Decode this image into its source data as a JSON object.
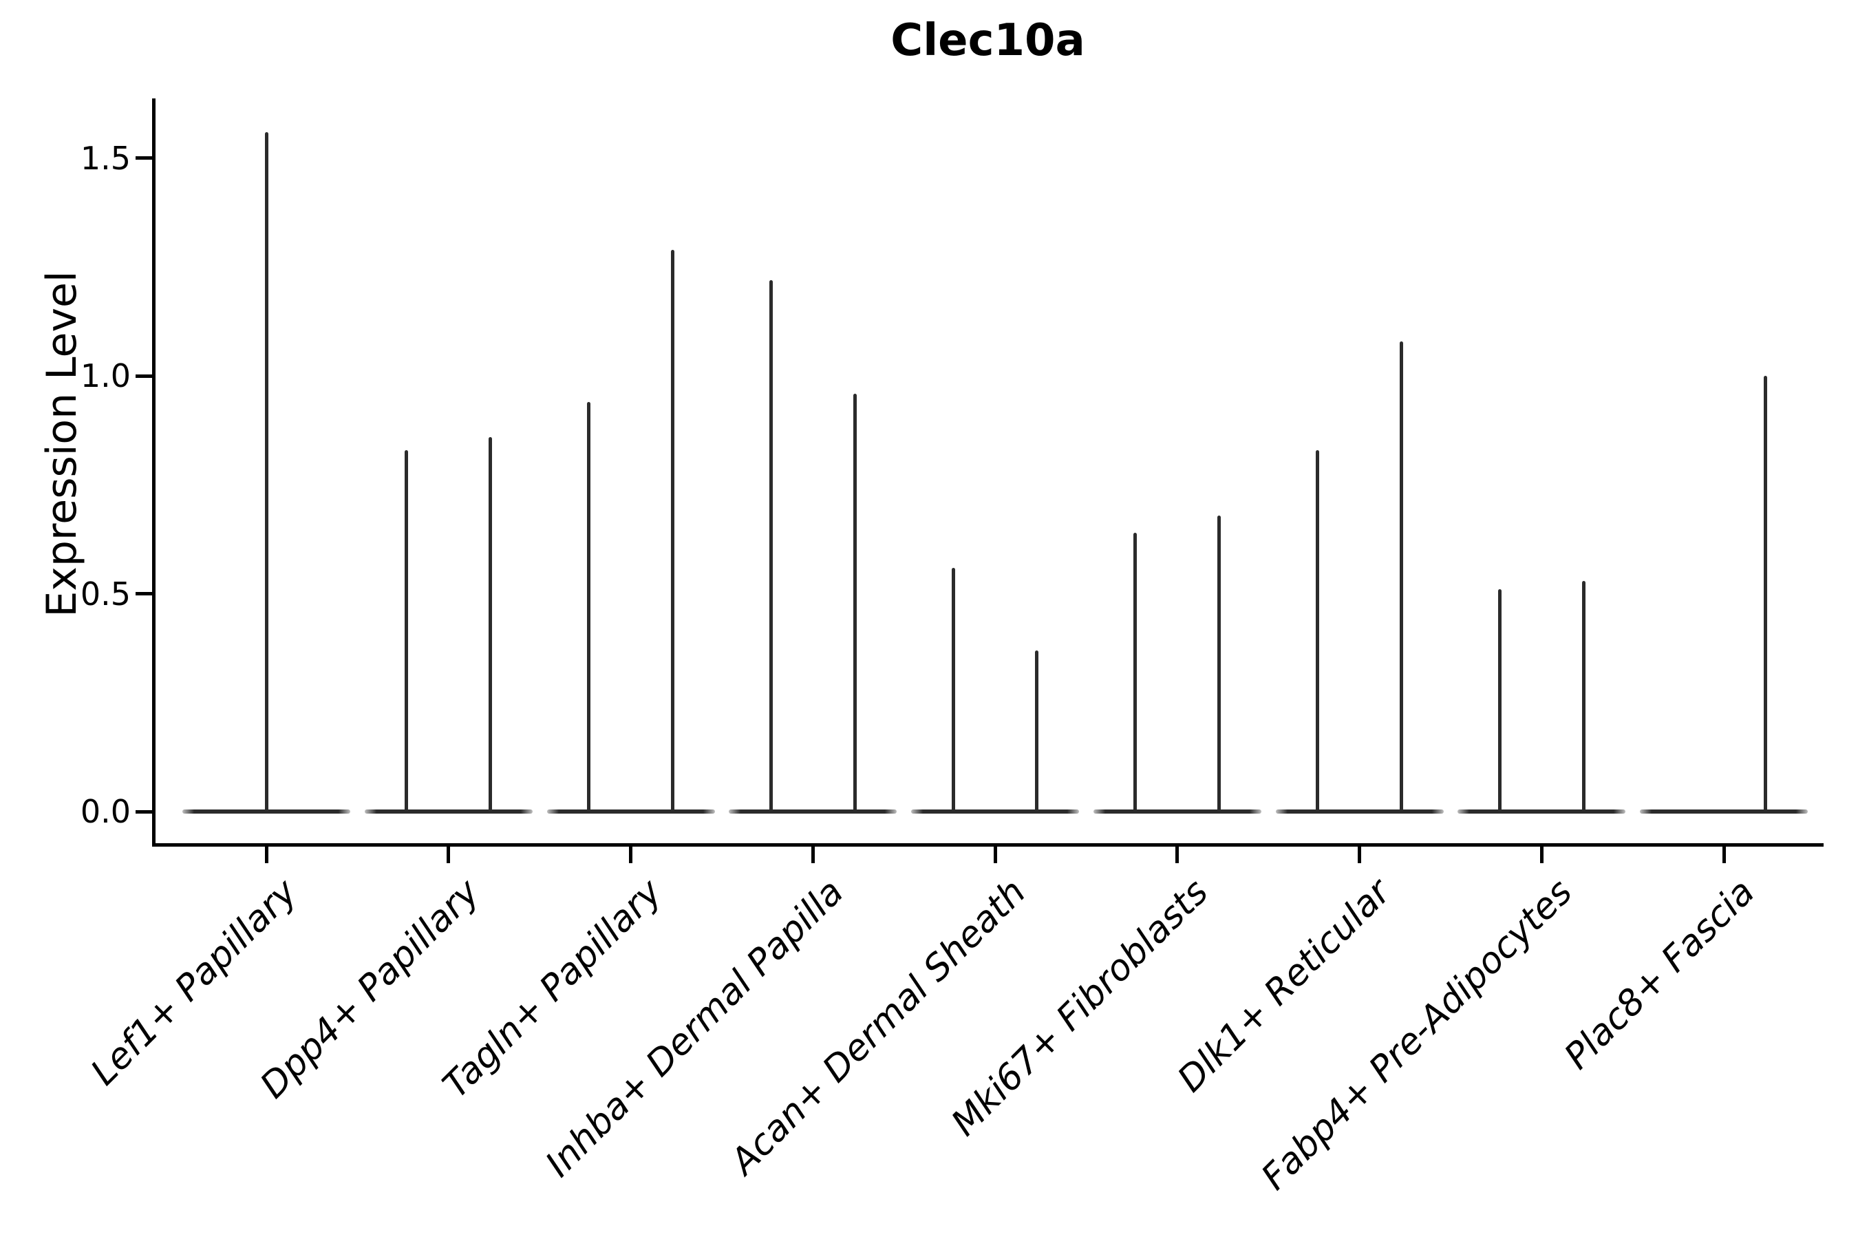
{
  "figure": {
    "title": "Clec10a",
    "background_color": "#ffffff",
    "violin_color": "#2b2b2b",
    "axis_color": "#000000"
  },
  "chart_data": {
    "type": "violin",
    "title": "Clec10a",
    "xlabel": "",
    "ylabel": "Expression Level",
    "ylim": [
      0,
      1.64
    ],
    "yticks": [
      "0.0",
      "0.5",
      "1.0",
      "1.5"
    ],
    "grid": false,
    "legend": null,
    "categories": [
      "Lef1+ Papillary",
      "Dpp4+ Papillary",
      "Tagln+ Papillary",
      "Inhba+ Dermal Papilla",
      "Acan+ Dermal Sheath",
      "Mki67+ Fibroblasts",
      "Dlk1+ Reticular",
      "Fabp4+ Pre-Adipocytes",
      "Plac8+ Fascia"
    ],
    "violin_baseline_value": 0.0,
    "violins": [
      {
        "category": "Lef1+ Papillary",
        "spikes": [
          {
            "offset": 0.0,
            "max": 1.56
          }
        ]
      },
      {
        "category": "Dpp4+ Papillary",
        "spikes": [
          {
            "offset": -0.23,
            "max": 0.83
          },
          {
            "offset": 0.23,
            "max": 0.86
          }
        ]
      },
      {
        "category": "Tagln+ Papillary",
        "spikes": [
          {
            "offset": -0.23,
            "max": 0.94
          },
          {
            "offset": 0.23,
            "max": 1.29
          }
        ]
      },
      {
        "category": "Inhba+ Dermal Papilla",
        "spikes": [
          {
            "offset": -0.23,
            "max": 1.22
          },
          {
            "offset": 0.23,
            "max": 0.96
          }
        ]
      },
      {
        "category": "Acan+ Dermal Sheath",
        "spikes": [
          {
            "offset": -0.23,
            "max": 0.56
          },
          {
            "offset": 0.23,
            "max": 0.37
          }
        ]
      },
      {
        "category": "Mki67+ Fibroblasts",
        "spikes": [
          {
            "offset": -0.23,
            "max": 0.64
          },
          {
            "offset": 0.23,
            "max": 0.68
          }
        ]
      },
      {
        "category": "Dlk1+ Reticular",
        "spikes": [
          {
            "offset": -0.23,
            "max": 0.83
          },
          {
            "offset": 0.23,
            "max": 1.08
          }
        ]
      },
      {
        "category": "Fabp4+ Pre-Adipocytes",
        "spikes": [
          {
            "offset": -0.23,
            "max": 0.51
          },
          {
            "offset": 0.23,
            "max": 0.53
          }
        ]
      },
      {
        "category": "Plac8+ Fascia",
        "spikes": [
          {
            "offset": 0.23,
            "max": 1.0
          }
        ]
      }
    ]
  }
}
